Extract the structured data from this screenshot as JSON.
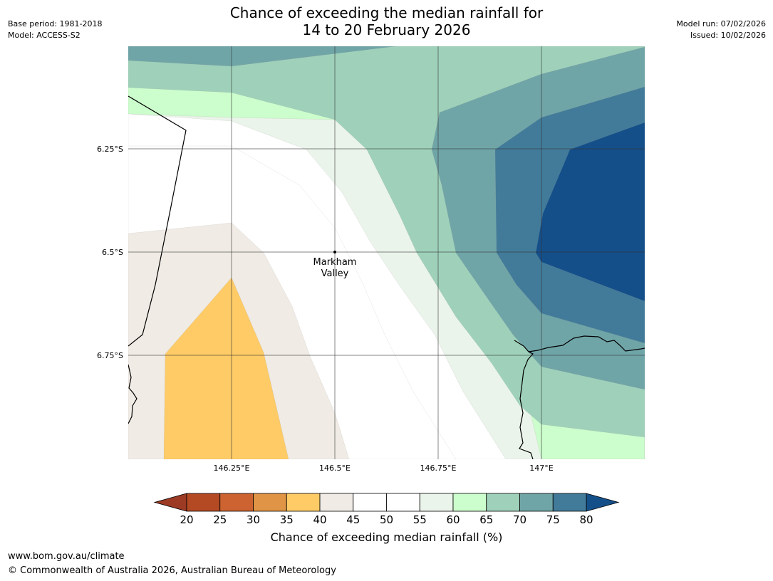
{
  "title": {
    "line1": "Chance of exceeding the median rainfall for",
    "line2": "14 to 20 February 2026"
  },
  "meta": {
    "base_period": "Base period: 1981-2018",
    "model": "Model: ACCESS-S2",
    "model_run": "Model run: 07/02/2026",
    "issued": "Issued: 10/02/2026"
  },
  "map": {
    "lat_labels": [
      "6.25°S",
      "6.5°S",
      "6.75°S"
    ],
    "lon_labels": [
      "146.25°E",
      "146.5°E",
      "146.75°E",
      "147°E"
    ],
    "place": {
      "line1": "Markham",
      "line2": "Valley"
    }
  },
  "colorbar": {
    "title": "Chance of exceeding median rainfall (%)",
    "ticks": [
      "20",
      "25",
      "30",
      "35",
      "40",
      "45",
      "50",
      "55",
      "60",
      "65",
      "70",
      "75",
      "80"
    ],
    "colors": {
      "below20": "#9c3a24",
      "c20_25": "#b34a24",
      "c25_30": "#cc6330",
      "c30_35": "#e09445",
      "c35_40": "#fecb66",
      "c40_45": "#f0ebe4",
      "c45_50": "#ffffff",
      "c50_55": "#ffffff",
      "c55_60": "#eaf4ea",
      "c60_65": "#ccfdcc",
      "c65_70": "#9fd1ba",
      "c70_75": "#70a5a8",
      "c75_80": "#427b9a",
      "above80": "#144f8a"
    }
  },
  "footer": {
    "url": "www.bom.gov.au/climate",
    "copyright": "© Commonwealth of Australia 2026, Australian Bureau of Meteorology"
  }
}
